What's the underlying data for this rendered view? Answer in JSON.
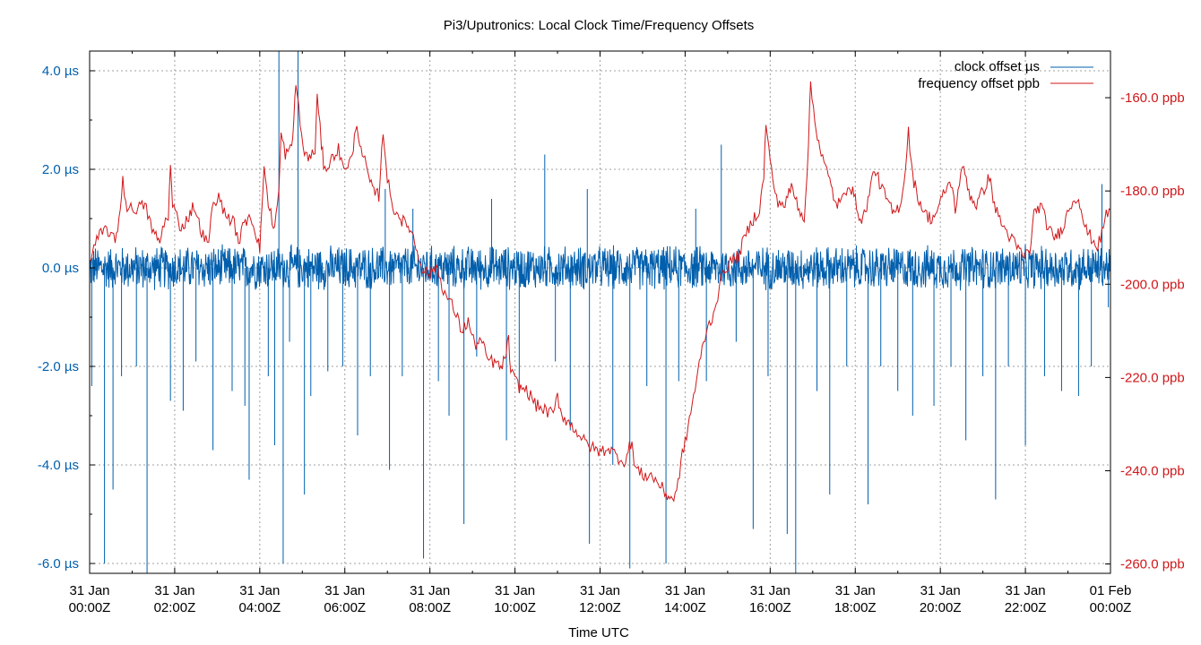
{
  "chart_data": {
    "type": "line",
    "title": "Pi3/Uputronics: Local Clock Time/Frequency Offsets",
    "xlabel": "Time UTC",
    "x_range_hours": [
      0,
      24
    ],
    "x_ticks": [
      {
        "hour": 0,
        "line1": "31 Jan",
        "line2": "00:00Z"
      },
      {
        "hour": 2,
        "line1": "31 Jan",
        "line2": "02:00Z"
      },
      {
        "hour": 4,
        "line1": "31 Jan",
        "line2": "04:00Z"
      },
      {
        "hour": 6,
        "line1": "31 Jan",
        "line2": "06:00Z"
      },
      {
        "hour": 8,
        "line1": "31 Jan",
        "line2": "08:00Z"
      },
      {
        "hour": 10,
        "line1": "31 Jan",
        "line2": "10:00Z"
      },
      {
        "hour": 12,
        "line1": "31 Jan",
        "line2": "12:00Z"
      },
      {
        "hour": 14,
        "line1": "31 Jan",
        "line2": "14:00Z"
      },
      {
        "hour": 16,
        "line1": "31 Jan",
        "line2": "16:00Z"
      },
      {
        "hour": 18,
        "line1": "31 Jan",
        "line2": "18:00Z"
      },
      {
        "hour": 20,
        "line1": "31 Jan",
        "line2": "20:00Z"
      },
      {
        "hour": 22,
        "line1": "31 Jan",
        "line2": "22:00Z"
      },
      {
        "hour": 24,
        "line1": "01 Feb",
        "line2": "00:00Z"
      }
    ],
    "y_left": {
      "unit": "µs",
      "range": [
        -6.2,
        4.4
      ],
      "ticks": [
        {
          "value": 4.0,
          "label": "4.0 µs"
        },
        {
          "value": 2.0,
          "label": "2.0 µs"
        },
        {
          "value": 0.0,
          "label": "0.0 µs"
        },
        {
          "value": -2.0,
          "label": "-2.0 µs"
        },
        {
          "value": -4.0,
          "label": "-4.0 µs"
        },
        {
          "value": -6.0,
          "label": "-6.0 µs"
        }
      ]
    },
    "y_right": {
      "unit": "ppb",
      "range": [
        -262,
        -150
      ],
      "ticks": [
        {
          "value": -160,
          "label": "-160.0 ppb"
        },
        {
          "value": -180,
          "label": "-180.0 ppb"
        },
        {
          "value": -200,
          "label": "-200.0 ppb"
        },
        {
          "value": -220,
          "label": "-220.0 ppb"
        },
        {
          "value": -240,
          "label": "-240.0 ppb"
        },
        {
          "value": -260,
          "label": "-260.0 ppb"
        }
      ]
    },
    "legend_position": "top-right",
    "series": [
      {
        "name": "clock offset µs",
        "axis": "left",
        "color": "#005fad",
        "band_amplitude": 0.45,
        "spikes": [
          {
            "hour": 0.05,
            "value": -2.4
          },
          {
            "hour": 0.35,
            "value": -6.0
          },
          {
            "hour": 0.55,
            "value": -4.5
          },
          {
            "hour": 0.75,
            "value": -2.2
          },
          {
            "hour": 1.1,
            "value": -2.0
          },
          {
            "hour": 1.35,
            "value": -6.2
          },
          {
            "hour": 1.9,
            "value": -2.7
          },
          {
            "hour": 2.2,
            "value": -2.9
          },
          {
            "hour": 2.5,
            "value": -1.9
          },
          {
            "hour": 2.9,
            "value": -3.7
          },
          {
            "hour": 3.35,
            "value": -2.5
          },
          {
            "hour": 3.65,
            "value": -2.8
          },
          {
            "hour": 3.75,
            "value": -4.3
          },
          {
            "hour": 4.2,
            "value": -2.2
          },
          {
            "hour": 4.35,
            "value": -3.6
          },
          {
            "hour": 4.45,
            "value": 4.5
          },
          {
            "hour": 4.55,
            "value": -6.0
          },
          {
            "hour": 4.7,
            "value": -1.5
          },
          {
            "hour": 4.9,
            "value": 4.4
          },
          {
            "hour": 5.05,
            "value": -4.6
          },
          {
            "hour": 5.2,
            "value": -2.6
          },
          {
            "hour": 5.6,
            "value": -2.1
          },
          {
            "hour": 5.95,
            "value": -2.0
          },
          {
            "hour": 6.3,
            "value": -3.4
          },
          {
            "hour": 6.6,
            "value": -2.2
          },
          {
            "hour": 6.95,
            "value": 1.6
          },
          {
            "hour": 7.05,
            "value": -4.1
          },
          {
            "hour": 7.35,
            "value": -2.2
          },
          {
            "hour": 7.6,
            "value": 1.2
          },
          {
            "hour": 7.85,
            "value": -5.9
          },
          {
            "hour": 8.2,
            "value": -2.3
          },
          {
            "hour": 8.45,
            "value": -3.0
          },
          {
            "hour": 8.8,
            "value": -5.2
          },
          {
            "hour": 9.1,
            "value": -1.8
          },
          {
            "hour": 9.45,
            "value": 1.4
          },
          {
            "hour": 9.8,
            "value": -3.5
          },
          {
            "hour": 10.1,
            "value": -2.5
          },
          {
            "hour": 10.7,
            "value": 2.3
          },
          {
            "hour": 10.95,
            "value": -1.9
          },
          {
            "hour": 11.3,
            "value": -3.3
          },
          {
            "hour": 11.7,
            "value": 1.6
          },
          {
            "hour": 11.75,
            "value": -5.6
          },
          {
            "hour": 12.3,
            "value": -4.0
          },
          {
            "hour": 12.7,
            "value": -6.1
          },
          {
            "hour": 13.1,
            "value": -2.4
          },
          {
            "hour": 13.55,
            "value": -6.0
          },
          {
            "hour": 13.85,
            "value": -2.3
          },
          {
            "hour": 14.25,
            "value": 1.2
          },
          {
            "hour": 14.5,
            "value": -2.3
          },
          {
            "hour": 14.85,
            "value": 2.5
          },
          {
            "hour": 15.2,
            "value": -1.5
          },
          {
            "hour": 15.6,
            "value": -5.3
          },
          {
            "hour": 15.95,
            "value": -2.2
          },
          {
            "hour": 16.4,
            "value": -5.4
          },
          {
            "hour": 16.6,
            "value": -6.2
          },
          {
            "hour": 17.1,
            "value": -2.5
          },
          {
            "hour": 17.4,
            "value": -4.6
          },
          {
            "hour": 17.8,
            "value": -2.0
          },
          {
            "hour": 18.3,
            "value": -4.8
          },
          {
            "hour": 18.6,
            "value": -2.0
          },
          {
            "hour": 19.0,
            "value": -2.5
          },
          {
            "hour": 19.35,
            "value": -3.0
          },
          {
            "hour": 19.85,
            "value": -2.8
          },
          {
            "hour": 20.25,
            "value": -2.0
          },
          {
            "hour": 20.6,
            "value": -3.5
          },
          {
            "hour": 21.0,
            "value": -2.2
          },
          {
            "hour": 21.3,
            "value": -4.7
          },
          {
            "hour": 21.6,
            "value": -2.0
          },
          {
            "hour": 22.0,
            "value": -3.6
          },
          {
            "hour": 22.45,
            "value": -2.2
          },
          {
            "hour": 22.85,
            "value": -2.5
          },
          {
            "hour": 23.25,
            "value": -2.6
          },
          {
            "hour": 23.55,
            "value": -2.0
          },
          {
            "hour": 23.8,
            "value": 1.7
          },
          {
            "hour": 23.95,
            "value": -0.8
          }
        ]
      },
      {
        "name": "frequency offset ppb",
        "axis": "right",
        "color": "#d0171a",
        "points": [
          [
            0.0,
            -195
          ],
          [
            0.2,
            -190
          ],
          [
            0.4,
            -188
          ],
          [
            0.6,
            -191
          ],
          [
            0.72,
            -184
          ],
          [
            0.78,
            -177
          ],
          [
            0.85,
            -183
          ],
          [
            1.0,
            -184
          ],
          [
            1.3,
            -183
          ],
          [
            1.5,
            -189
          ],
          [
            1.65,
            -191
          ],
          [
            1.75,
            -187
          ],
          [
            1.85,
            -185
          ],
          [
            1.9,
            -175
          ],
          [
            1.95,
            -183
          ],
          [
            2.15,
            -188
          ],
          [
            2.3,
            -186
          ],
          [
            2.45,
            -183
          ],
          [
            2.6,
            -188
          ],
          [
            2.8,
            -192
          ],
          [
            2.85,
            -185
          ],
          [
            3.0,
            -181
          ],
          [
            3.2,
            -185
          ],
          [
            3.4,
            -187
          ],
          [
            3.5,
            -191
          ],
          [
            3.6,
            -188
          ],
          [
            3.75,
            -185
          ],
          [
            3.85,
            -187
          ],
          [
            4.0,
            -192
          ],
          [
            4.05,
            -185
          ],
          [
            4.1,
            -174
          ],
          [
            4.2,
            -183
          ],
          [
            4.35,
            -188
          ],
          [
            4.45,
            -180
          ],
          [
            4.5,
            -168
          ],
          [
            4.6,
            -172
          ],
          [
            4.75,
            -171
          ],
          [
            4.8,
            -165
          ],
          [
            4.85,
            -156
          ],
          [
            4.95,
            -166
          ],
          [
            5.05,
            -172
          ],
          [
            5.2,
            -173
          ],
          [
            5.3,
            -171
          ],
          [
            5.35,
            -160
          ],
          [
            5.45,
            -170
          ],
          [
            5.5,
            -174
          ],
          [
            5.6,
            -175
          ],
          [
            5.75,
            -172
          ],
          [
            5.85,
            -171
          ],
          [
            5.95,
            -175
          ],
          [
            6.1,
            -174
          ],
          [
            6.2,
            -172
          ],
          [
            6.25,
            -166
          ],
          [
            6.35,
            -169
          ],
          [
            6.5,
            -175
          ],
          [
            6.65,
            -180
          ],
          [
            6.8,
            -181
          ],
          [
            6.9,
            -167
          ],
          [
            7.0,
            -177
          ],
          [
            7.1,
            -183
          ],
          [
            7.25,
            -185
          ],
          [
            7.4,
            -187
          ],
          [
            7.55,
            -188
          ],
          [
            7.7,
            -193
          ],
          [
            7.85,
            -197
          ],
          [
            8.0,
            -198
          ],
          [
            8.15,
            -196
          ],
          [
            8.25,
            -199
          ],
          [
            8.35,
            -202
          ],
          [
            8.55,
            -205
          ],
          [
            8.75,
            -210
          ],
          [
            8.9,
            -208
          ],
          [
            9.05,
            -213
          ],
          [
            9.2,
            -212
          ],
          [
            9.35,
            -216
          ],
          [
            9.55,
            -217
          ],
          [
            9.7,
            -218
          ],
          [
            9.85,
            -212
          ],
          [
            9.9,
            -219
          ],
          [
            10.1,
            -222
          ],
          [
            10.3,
            -223
          ],
          [
            10.5,
            -226
          ],
          [
            10.7,
            -227
          ],
          [
            10.9,
            -228
          ],
          [
            11.0,
            -224
          ],
          [
            11.1,
            -228
          ],
          [
            11.3,
            -230
          ],
          [
            11.5,
            -232
          ],
          [
            11.65,
            -234
          ],
          [
            11.8,
            -235
          ],
          [
            12.0,
            -236
          ],
          [
            12.2,
            -235
          ],
          [
            12.4,
            -237
          ],
          [
            12.6,
            -238
          ],
          [
            12.75,
            -233
          ],
          [
            12.8,
            -239
          ],
          [
            13.0,
            -241
          ],
          [
            13.2,
            -241
          ],
          [
            13.4,
            -243
          ],
          [
            13.55,
            -245
          ],
          [
            13.7,
            -246
          ],
          [
            13.8,
            -245
          ],
          [
            13.9,
            -238
          ],
          [
            14.0,
            -234
          ],
          [
            14.1,
            -229
          ],
          [
            14.2,
            -224
          ],
          [
            14.3,
            -219
          ],
          [
            14.4,
            -214
          ],
          [
            14.5,
            -210
          ],
          [
            14.6,
            -208
          ],
          [
            14.7,
            -205
          ],
          [
            14.8,
            -201
          ],
          [
            14.9,
            -197
          ],
          [
            15.1,
            -195
          ],
          [
            15.25,
            -194
          ],
          [
            15.4,
            -190
          ],
          [
            15.6,
            -186
          ],
          [
            15.75,
            -184
          ],
          [
            15.85,
            -177
          ],
          [
            15.9,
            -165
          ],
          [
            16.0,
            -174
          ],
          [
            16.15,
            -182
          ],
          [
            16.35,
            -183
          ],
          [
            16.5,
            -179
          ],
          [
            16.65,
            -183
          ],
          [
            16.8,
            -186
          ],
          [
            16.9,
            -170
          ],
          [
            16.95,
            -157
          ],
          [
            17.05,
            -165
          ],
          [
            17.2,
            -172
          ],
          [
            17.4,
            -178
          ],
          [
            17.55,
            -183
          ],
          [
            17.7,
            -182
          ],
          [
            17.85,
            -178
          ],
          [
            18.0,
            -182
          ],
          [
            18.15,
            -187
          ],
          [
            18.3,
            -182
          ],
          [
            18.45,
            -175
          ],
          [
            18.6,
            -179
          ],
          [
            18.75,
            -182
          ],
          [
            18.9,
            -185
          ],
          [
            19.05,
            -183
          ],
          [
            19.15,
            -178
          ],
          [
            19.25,
            -167
          ],
          [
            19.35,
            -177
          ],
          [
            19.5,
            -182
          ],
          [
            19.65,
            -185
          ],
          [
            19.8,
            -186
          ],
          [
            19.95,
            -184
          ],
          [
            20.1,
            -180
          ],
          [
            20.25,
            -178
          ],
          [
            20.35,
            -184
          ],
          [
            20.45,
            -178
          ],
          [
            20.55,
            -175
          ],
          [
            20.7,
            -181
          ],
          [
            20.85,
            -183
          ],
          [
            21.0,
            -180
          ],
          [
            21.15,
            -177
          ],
          [
            21.3,
            -184
          ],
          [
            21.5,
            -188
          ],
          [
            21.65,
            -190
          ],
          [
            21.8,
            -192
          ],
          [
            21.95,
            -194
          ],
          [
            22.1,
            -193
          ],
          [
            22.2,
            -185
          ],
          [
            22.35,
            -183
          ],
          [
            22.5,
            -187
          ],
          [
            22.65,
            -190
          ],
          [
            22.8,
            -189
          ],
          [
            22.95,
            -186
          ],
          [
            23.05,
            -183
          ],
          [
            23.25,
            -181
          ],
          [
            23.4,
            -188
          ],
          [
            23.55,
            -190
          ],
          [
            23.7,
            -192
          ],
          [
            23.8,
            -189
          ],
          [
            23.9,
            -185
          ],
          [
            24.0,
            -184
          ]
        ]
      }
    ]
  }
}
